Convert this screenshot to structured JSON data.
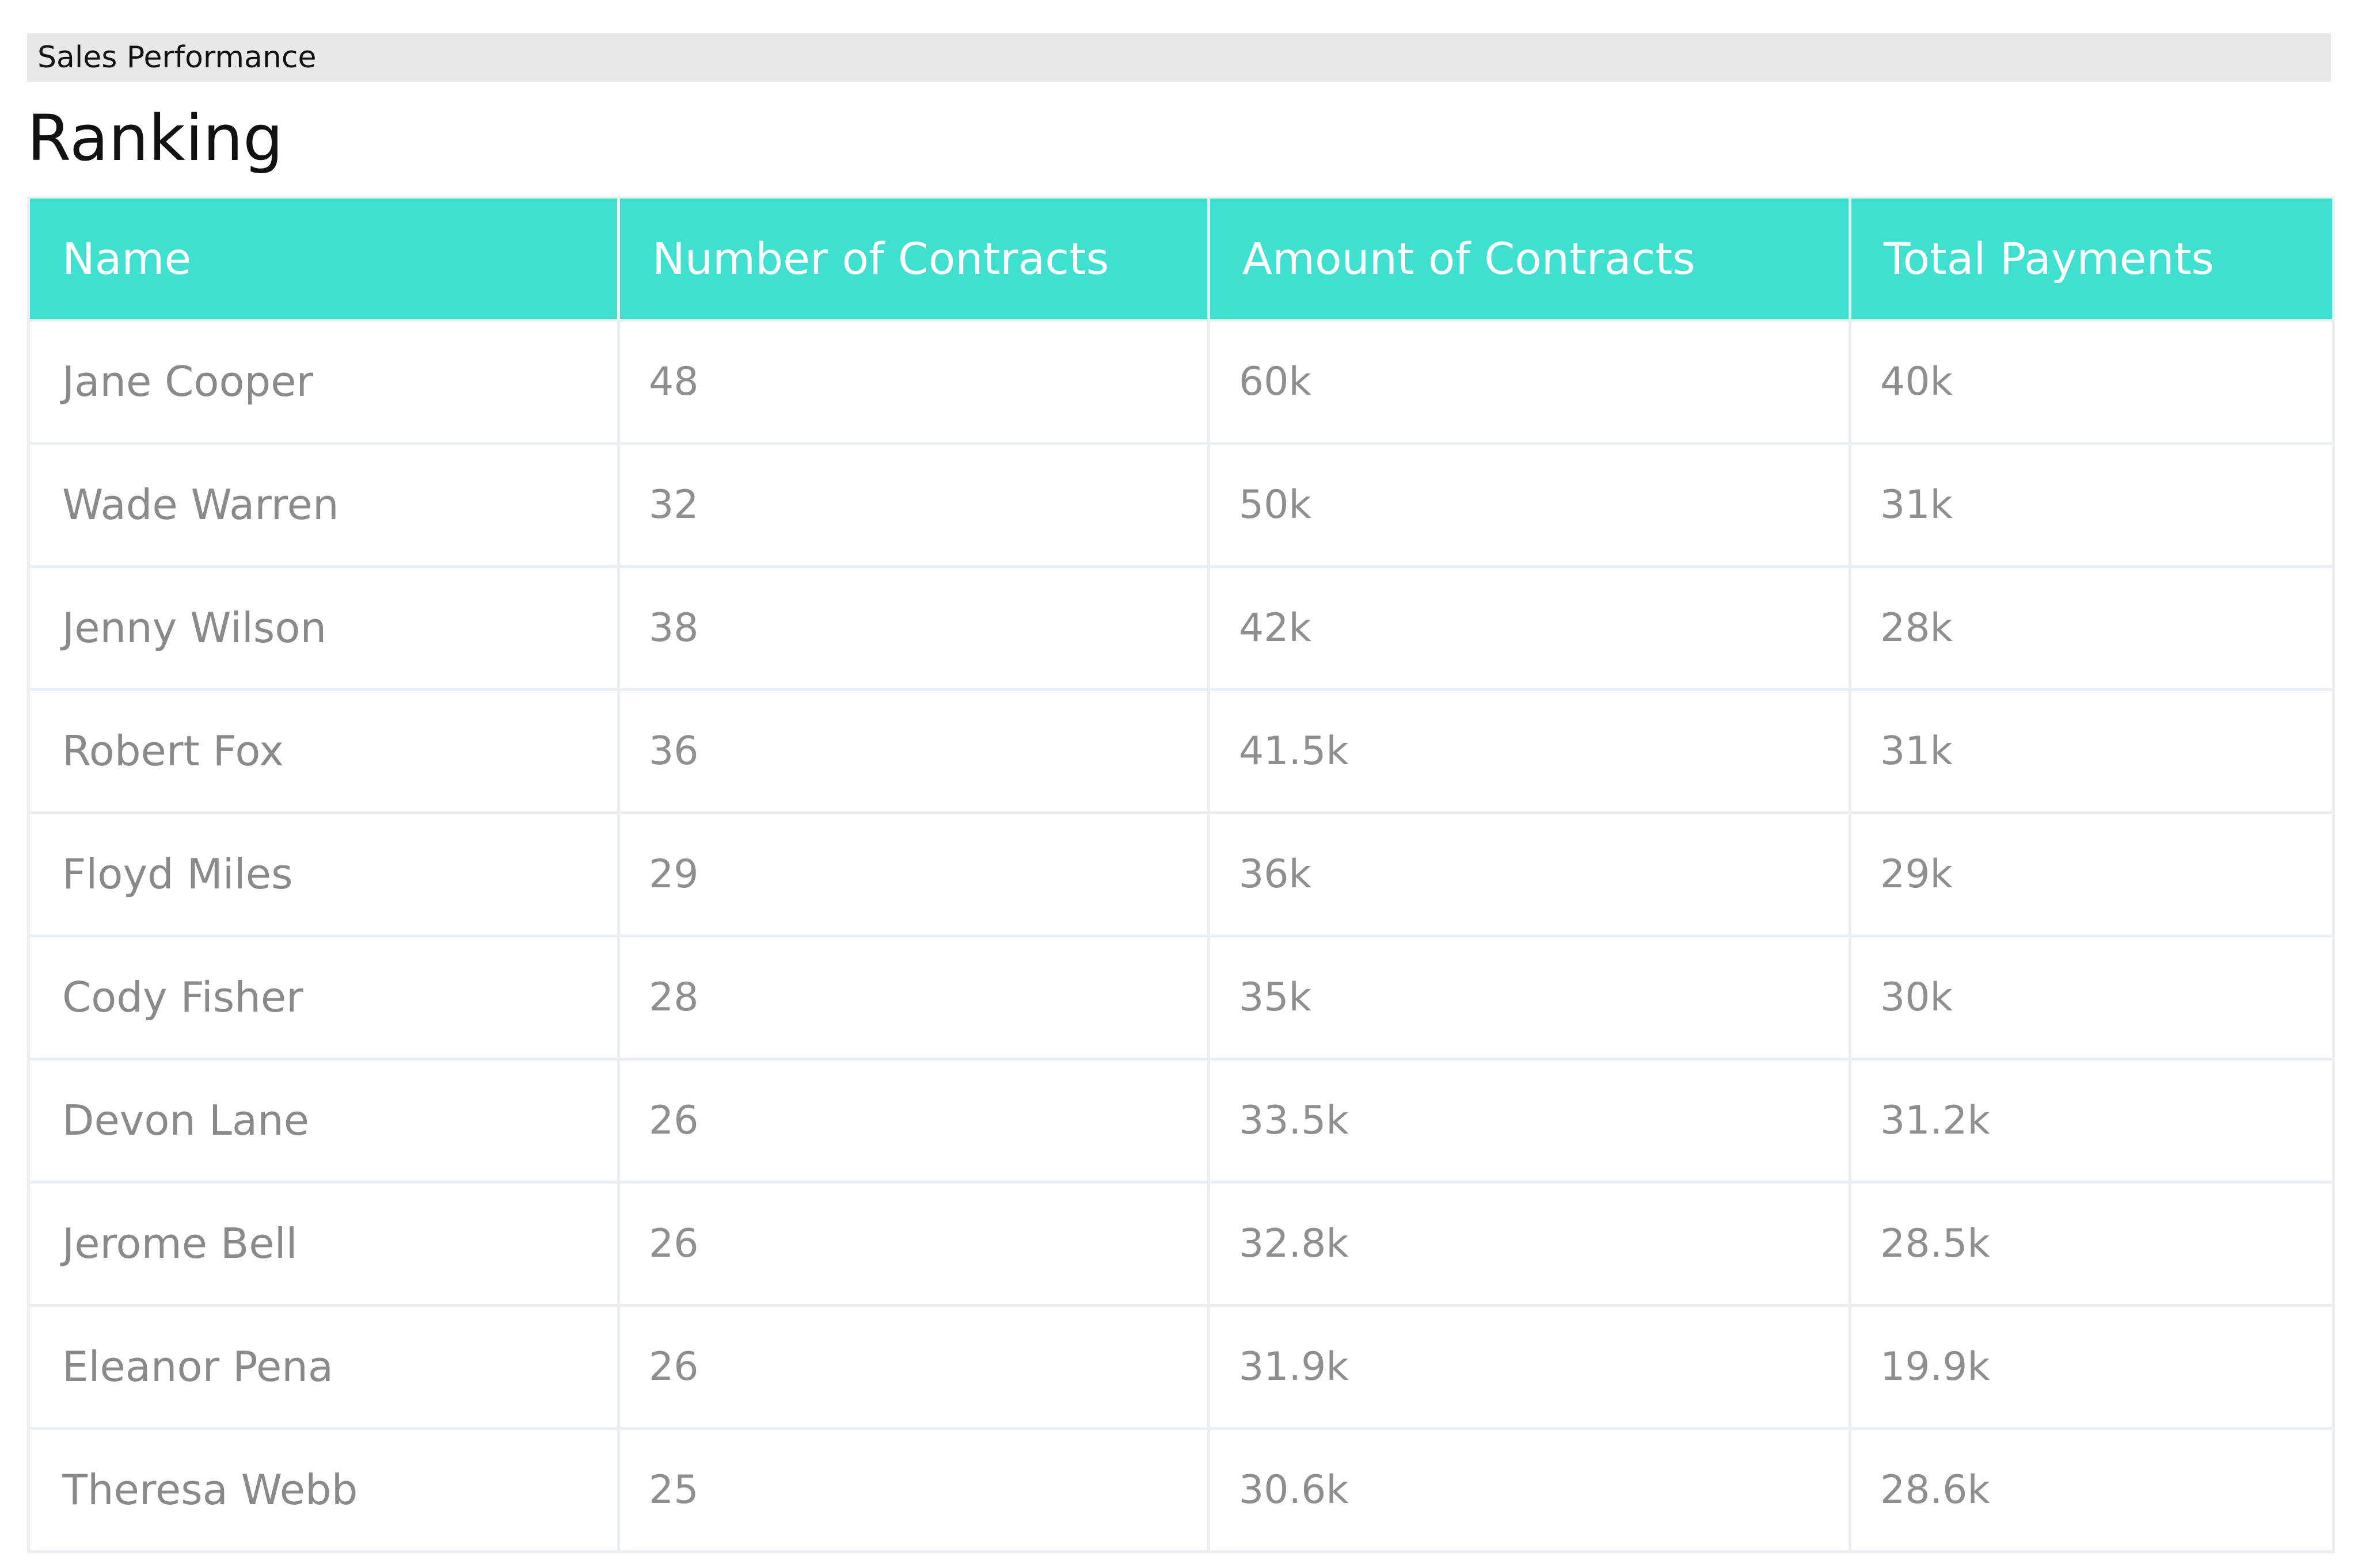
{
  "header": {
    "app_title": "Sales Performance",
    "page_title": "Ranking",
    "accent_color": "#40e0d0"
  },
  "table": {
    "columns": [
      "Name",
      "Number of Contracts",
      "Amount of Contracts",
      "Total Payments"
    ],
    "rows": [
      {
        "name": "Jane Cooper",
        "contracts": "48",
        "amount": "60k",
        "payments": "40k"
      },
      {
        "name": "Wade Warren",
        "contracts": "32",
        "amount": "50k",
        "payments": "31k"
      },
      {
        "name": "Jenny Wilson",
        "contracts": "38",
        "amount": "42k",
        "payments": "28k"
      },
      {
        "name": "Robert Fox",
        "contracts": "36",
        "amount": "41.5k",
        "payments": "31k"
      },
      {
        "name": "Floyd Miles",
        "contracts": "29",
        "amount": "36k",
        "payments": "29k"
      },
      {
        "name": "Cody Fisher",
        "contracts": "28",
        "amount": "35k",
        "payments": "30k"
      },
      {
        "name": "Devon Lane",
        "contracts": "26",
        "amount": "33.5k",
        "payments": "31.2k"
      },
      {
        "name": "Jerome Bell",
        "contracts": "26",
        "amount": "32.8k",
        "payments": "28.5k"
      },
      {
        "name": "Eleanor Pena",
        "contracts": "26",
        "amount": "31.9k",
        "payments": "19.9k"
      },
      {
        "name": "Theresa Webb",
        "contracts": "25",
        "amount": "30.6k",
        "payments": "28.6k"
      }
    ]
  }
}
